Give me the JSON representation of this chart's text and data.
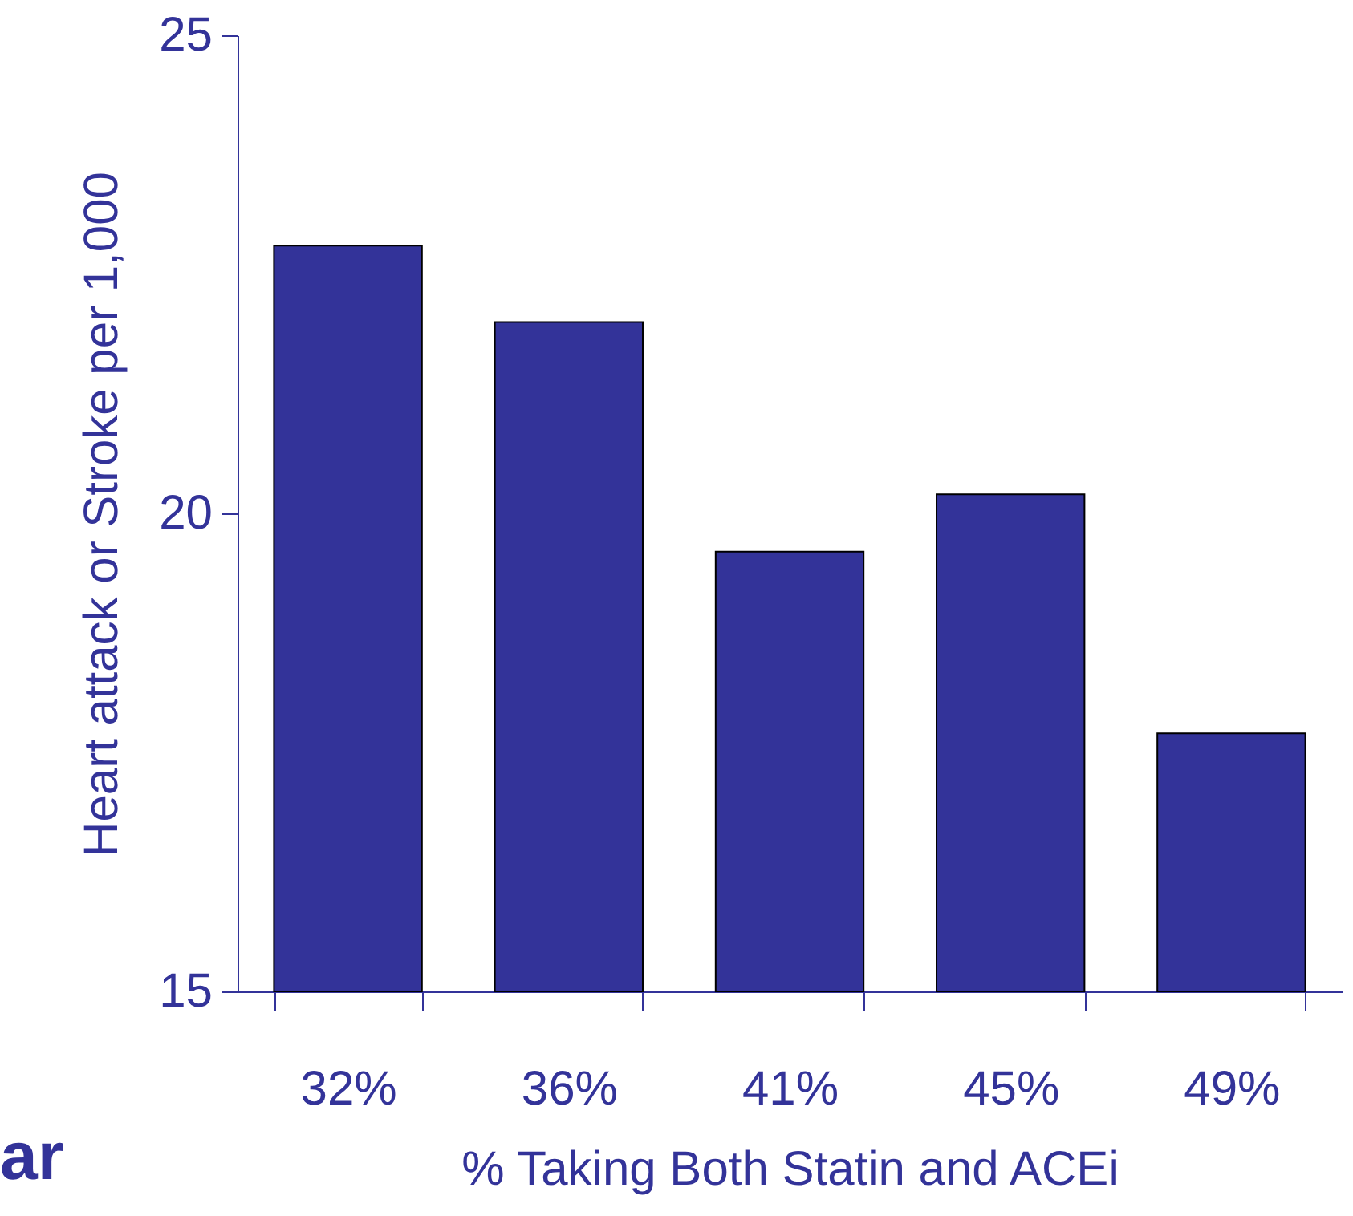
{
  "chart_data": {
    "type": "bar",
    "xlabel": "% Taking Both Statin and ACEi",
    "ylabel": "Heart attack or Stroke per 1,000",
    "categories": [
      "32%",
      "36%",
      "41%",
      "45%",
      "49%"
    ],
    "values": [
      22.8,
      22.0,
      19.6,
      20.2,
      17.7
    ],
    "color": "#333399",
    "ylim": [
      15,
      25
    ],
    "yticks": [
      15,
      20,
      25
    ],
    "grid": false,
    "annotations": [
      "ar"
    ]
  }
}
